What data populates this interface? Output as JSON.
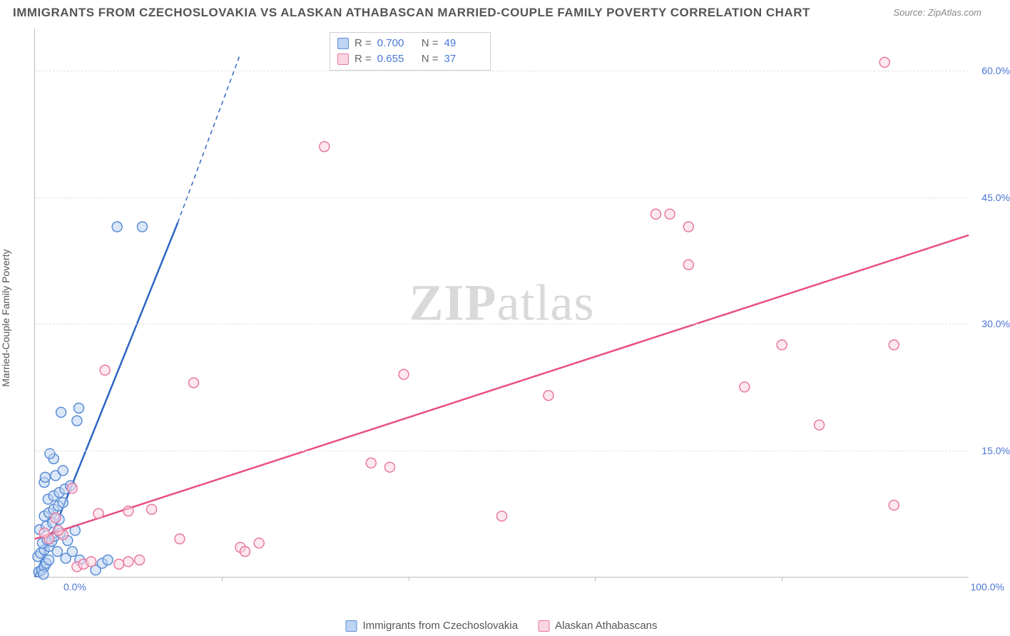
{
  "title": "IMMIGRANTS FROM CZECHOSLOVAKIA VS ALASKAN ATHABASCAN MARRIED-COUPLE FAMILY POVERTY CORRELATION CHART",
  "source": "Source: ZipAtlas.com",
  "watermark_zip": "ZIP",
  "watermark_atlas": "atlas",
  "yaxis_title": "Married-Couple Family Poverty",
  "xaxis": {
    "min_label": "0.0%",
    "max_label": "100.0%",
    "xlim": [
      0,
      100
    ],
    "tick_step": 20
  },
  "yaxis": {
    "ylim": [
      0,
      65
    ],
    "ticks": [
      15,
      30,
      45,
      60
    ],
    "tick_labels": [
      "15.0%",
      "30.0%",
      "45.0%",
      "60.0%"
    ]
  },
  "colors": {
    "blue_stroke": "#5a8dd6",
    "blue_fill": "#bdd4f3",
    "blue_line": "#2f66c4",
    "pink_stroke": "#e77aa0",
    "pink_fill": "#fbd6e2",
    "pink_line": "#e94f82",
    "axis_text": "#4a77d4",
    "grid": "#e0e0e0",
    "watermark": "#d9d9d9"
  },
  "marker": {
    "radius": 7,
    "stroke_width": 1.5,
    "fill_opacity": 0.55
  },
  "legend_top": {
    "rows": [
      {
        "swatch": "blue",
        "r_label": "R =",
        "r_value": "0.700",
        "n_label": "N =",
        "n_value": "49"
      },
      {
        "swatch": "pink",
        "r_label": "R =",
        "r_value": "0.655",
        "n_label": "N =",
        "n_value": "37"
      }
    ]
  },
  "legend_bottom": {
    "items": [
      {
        "swatch": "blue",
        "label": "Immigrants from Czechoslovakia"
      },
      {
        "swatch": "pink",
        "label": "Alaskan Athabascans"
      }
    ]
  },
  "scatter": {
    "type": "scatter",
    "series": [
      {
        "name": "blue",
        "trend": {
          "x1": 0,
          "y1": 0,
          "x2": 15.3,
          "y2": 42,
          "dashed_to_x": 22,
          "dashed_to_y": 62,
          "width": 2.5
        },
        "points": [
          [
            0.4,
            0.6
          ],
          [
            0.7,
            0.8
          ],
          [
            1.0,
            1.2
          ],
          [
            1.2,
            1.6
          ],
          [
            1.5,
            2.0
          ],
          [
            0.3,
            2.4
          ],
          [
            0.6,
            2.8
          ],
          [
            1.0,
            3.2
          ],
          [
            1.5,
            3.6
          ],
          [
            0.8,
            4.0
          ],
          [
            1.3,
            4.4
          ],
          [
            1.8,
            4.2
          ],
          [
            2.1,
            4.8
          ],
          [
            2.4,
            3.0
          ],
          [
            2.7,
            5.2
          ],
          [
            0.5,
            5.6
          ],
          [
            1.2,
            6.0
          ],
          [
            1.9,
            6.4
          ],
          [
            2.6,
            6.8
          ],
          [
            3.3,
            2.2
          ],
          [
            3.5,
            4.3
          ],
          [
            4.0,
            3.0
          ],
          [
            4.3,
            5.5
          ],
          [
            4.8,
            2.0
          ],
          [
            1.0,
            7.2
          ],
          [
            1.5,
            7.6
          ],
          [
            2.0,
            8.0
          ],
          [
            2.5,
            8.4
          ],
          [
            3.0,
            8.8
          ],
          [
            1.4,
            9.2
          ],
          [
            2.0,
            9.6
          ],
          [
            2.6,
            10.0
          ],
          [
            3.2,
            10.4
          ],
          [
            3.8,
            10.8
          ],
          [
            1.0,
            11.2
          ],
          [
            2.2,
            12.0
          ],
          [
            3.0,
            12.6
          ],
          [
            4.5,
            18.5
          ],
          [
            4.7,
            20.0
          ],
          [
            2.0,
            14.0
          ],
          [
            1.6,
            14.6
          ],
          [
            2.8,
            19.5
          ],
          [
            6.5,
            0.8
          ],
          [
            7.2,
            1.6
          ],
          [
            7.8,
            2.0
          ],
          [
            8.8,
            41.5
          ],
          [
            11.5,
            41.5
          ],
          [
            1.1,
            11.8
          ],
          [
            0.9,
            0.3
          ]
        ]
      },
      {
        "name": "pink",
        "trend": {
          "x1": 0,
          "y1": 4.5,
          "x2": 100,
          "y2": 40.5,
          "width": 2.5
        },
        "points": [
          [
            1.5,
            4.5
          ],
          [
            2.2,
            7.0
          ],
          [
            3.0,
            5.0
          ],
          [
            4.5,
            1.2
          ],
          [
            5.2,
            1.5
          ],
          [
            6.0,
            1.8
          ],
          [
            6.8,
            7.5
          ],
          [
            9.0,
            1.5
          ],
          [
            10.0,
            1.8
          ],
          [
            11.2,
            2.0
          ],
          [
            10.0,
            7.8
          ],
          [
            12.5,
            8.0
          ],
          [
            15.5,
            4.5
          ],
          [
            7.5,
            24.5
          ],
          [
            17.0,
            23.0
          ],
          [
            22.0,
            3.5
          ],
          [
            24.0,
            4.0
          ],
          [
            22.5,
            3.0
          ],
          [
            36.0,
            13.5
          ],
          [
            38.0,
            13.0
          ],
          [
            39.5,
            24.0
          ],
          [
            31.0,
            51.0
          ],
          [
            50.0,
            7.2
          ],
          [
            55.0,
            21.5
          ],
          [
            66.5,
            43.0
          ],
          [
            68.0,
            43.0
          ],
          [
            70.0,
            41.5
          ],
          [
            70.0,
            37.0
          ],
          [
            76.0,
            22.5
          ],
          [
            80.0,
            27.5
          ],
          [
            84.0,
            18.0
          ],
          [
            92.0,
            8.5
          ],
          [
            92.0,
            27.5
          ],
          [
            91.0,
            61.0
          ],
          [
            4.0,
            10.5
          ],
          [
            2.5,
            5.5
          ],
          [
            1.0,
            5.2
          ]
        ]
      }
    ]
  }
}
